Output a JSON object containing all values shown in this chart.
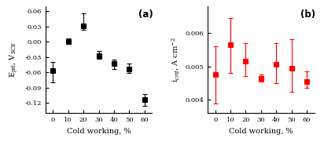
{
  "x": [
    0,
    10,
    20,
    30,
    40,
    50,
    60
  ],
  "a_y": [
    -0.057,
    0.001,
    0.031,
    -0.028,
    -0.043,
    -0.053,
    -0.113
  ],
  "a_yerr_up": [
    0.018,
    0.005,
    0.025,
    0.01,
    0.008,
    0.01,
    0.01
  ],
  "a_yerr_dn": [
    0.022,
    0.005,
    0.008,
    0.005,
    0.01,
    0.008,
    0.013
  ],
  "b_y": [
    0.00475,
    0.00565,
    0.00515,
    0.00465,
    0.00505,
    0.00495,
    0.00455
  ],
  "b_yerr_up": [
    0.00085,
    0.0008,
    0.00055,
    0.0001,
    0.00065,
    0.00085,
    0.0003
  ],
  "b_yerr_dn": [
    0.00085,
    0.00085,
    0.00045,
    0.0001,
    0.00055,
    0.0007,
    0.0002
  ],
  "a_ylabel": "E$_{pit}$, V$_{SCE}$",
  "b_ylabel": "i$_{crit}$, A cm$^{-2}$",
  "xlabel": "Cold working, %",
  "a_ylim": [
    -0.14,
    0.07
  ],
  "a_yticks": [
    -0.12,
    -0.09,
    -0.06,
    -0.03,
    0.0,
    0.03,
    0.06
  ],
  "b_ylim": [
    0.0036,
    0.0068
  ],
  "b_yticks": [
    0.004,
    0.005,
    0.006
  ],
  "xlim": [
    -5,
    65
  ],
  "xticks": [
    0,
    10,
    20,
    30,
    40,
    50,
    60
  ],
  "color_a": "black",
  "color_b": "red",
  "label_a": "(a)",
  "label_b": "(b)",
  "marker": "s",
  "markersize": 4,
  "capsize": 2.5,
  "linewidth": 0.8
}
